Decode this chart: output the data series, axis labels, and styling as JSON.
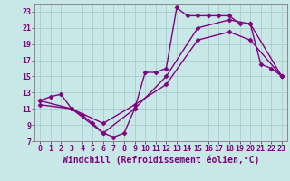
{
  "xlabel": "Windchill (Refroidissement éolien,°C)",
  "bg_color": "#c8e8e8",
  "line_color": "#800080",
  "grid_color": "#aacccc",
  "xlim": [
    -0.5,
    23.5
  ],
  "ylim": [
    7,
    24
  ],
  "xticks": [
    0,
    1,
    2,
    3,
    4,
    5,
    6,
    7,
    8,
    9,
    10,
    11,
    12,
    13,
    14,
    15,
    16,
    17,
    18,
    19,
    20,
    21,
    22,
    23
  ],
  "yticks": [
    7,
    9,
    11,
    13,
    15,
    17,
    19,
    21,
    23
  ],
  "line1_x": [
    0,
    1,
    2,
    3,
    4,
    5,
    6,
    7,
    8,
    9,
    10,
    11,
    12,
    13,
    14,
    15,
    16,
    17,
    18,
    19,
    20,
    21,
    22,
    23
  ],
  "line1_y": [
    12.0,
    12.5,
    12.8,
    11.0,
    10.2,
    9.2,
    8.0,
    7.5,
    8.0,
    11.0,
    15.5,
    15.5,
    16.0,
    23.5,
    22.5,
    22.5,
    22.5,
    22.5,
    22.5,
    21.5,
    21.5,
    16.5,
    16.0,
    15.0
  ],
  "line2_x": [
    0,
    3,
    6,
    9,
    12,
    15,
    18,
    20,
    23
  ],
  "line2_y": [
    12.0,
    11.0,
    8.0,
    11.0,
    15.0,
    21.0,
    22.0,
    21.5,
    15.0
  ],
  "line3_x": [
    0,
    3,
    6,
    9,
    12,
    15,
    18,
    20,
    23
  ],
  "line3_y": [
    11.5,
    11.0,
    9.2,
    11.5,
    14.0,
    19.5,
    20.5,
    19.5,
    15.0
  ],
  "font_family": "monospace",
  "tick_fontsize": 6,
  "label_fontsize": 7,
  "marker": "D",
  "markersize": 2.5,
  "linewidth": 1.0
}
